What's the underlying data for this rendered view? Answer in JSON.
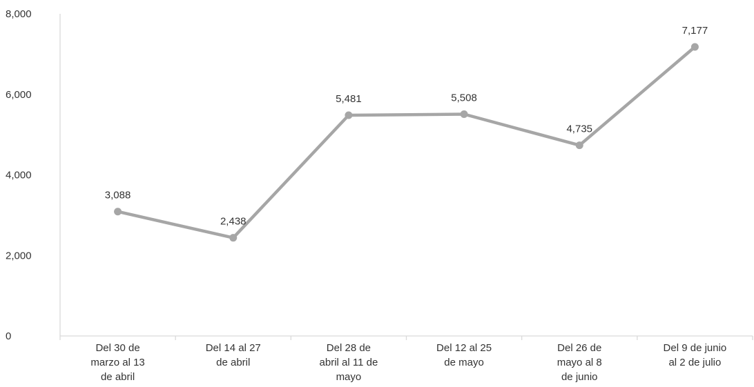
{
  "chart_data": {
    "type": "line",
    "title": "",
    "xlabel": "",
    "ylabel": "",
    "categories": [
      [
        "Del 30 de",
        "marzo al 13",
        "de abril"
      ],
      [
        "Del 14 al 27",
        "de abril"
      ],
      [
        "Del 28 de",
        "abril al 11 de",
        "mayo"
      ],
      [
        "Del 12 al 25",
        "de mayo"
      ],
      [
        "Del 26 de",
        "mayo al 8",
        "de junio"
      ],
      [
        "Del 9 de junio",
        "al 2 de julio"
      ]
    ],
    "values": [
      3088,
      2438,
      5481,
      5508,
      4735,
      7177
    ],
    "data_labels": [
      "3,088",
      "2,438",
      "5,481",
      "5,508",
      "4,735",
      "7,177"
    ],
    "ylim": [
      0,
      8000
    ],
    "yticks": [
      0,
      2000,
      4000,
      6000,
      8000
    ],
    "ytick_labels": [
      "0",
      "2,000",
      "4,000",
      "6,000",
      "8,000"
    ],
    "grid": false,
    "legend": "none",
    "series_color": "#A6A6A6",
    "axis_color": "#D9D9D9"
  }
}
